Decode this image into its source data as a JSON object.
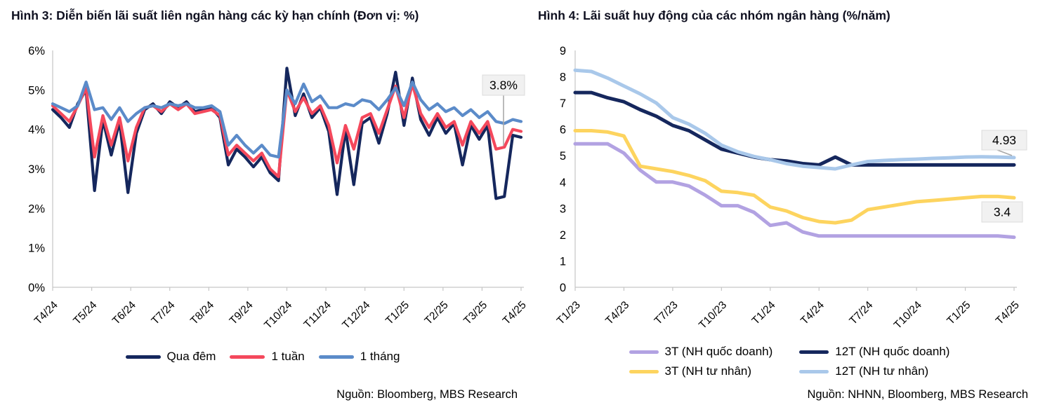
{
  "chart_data": [
    {
      "type": "line",
      "title": "Hình 3: Diễn biến lãi suất liên ngân hàng các kỳ hạn chính (Đơn vị: %)",
      "source": "Nguồn: Bloomberg, MBS Research",
      "ylim": [
        0,
        6
      ],
      "ytick_step": 1,
      "ytick_suffix": "%",
      "grid": false,
      "legend_position": "bottom",
      "x_tick_labels": [
        "T4/24",
        "T5/24",
        "T6/24",
        "T7/24",
        "T8/24",
        "T9/24",
        "T10/24",
        "T11/24",
        "T12/24",
        "T1/25",
        "T2/25",
        "T3/25",
        "T4/25"
      ],
      "series": [
        {
          "name": "Qua đêm",
          "color": "#15275d",
          "values": [
            4.5,
            4.3,
            4.05,
            4.65,
            5.0,
            2.45,
            4.25,
            3.35,
            4.2,
            2.4,
            3.9,
            4.5,
            4.65,
            4.4,
            4.7,
            4.55,
            4.7,
            4.45,
            4.5,
            4.55,
            4.3,
            3.1,
            3.5,
            3.3,
            3.05,
            3.3,
            2.9,
            2.7,
            5.55,
            4.35,
            4.9,
            4.3,
            4.55,
            3.95,
            2.35,
            4.0,
            2.6,
            4.15,
            4.3,
            3.65,
            4.4,
            5.45,
            4.1,
            5.3,
            4.25,
            3.85,
            4.3,
            3.9,
            4.15,
            3.1,
            4.1,
            3.75,
            4.1,
            2.25,
            2.3,
            3.85,
            3.8
          ]
        },
        {
          "name": "1 tuần",
          "color": "#f4485c",
          "values": [
            4.6,
            4.4,
            4.2,
            4.6,
            5.05,
            3.3,
            4.35,
            3.6,
            4.3,
            3.2,
            4.05,
            4.55,
            4.6,
            4.45,
            4.65,
            4.5,
            4.65,
            4.4,
            4.45,
            4.5,
            4.35,
            3.35,
            3.6,
            3.4,
            3.2,
            3.4,
            3.0,
            2.8,
            5.0,
            4.45,
            4.8,
            4.4,
            4.6,
            4.1,
            3.15,
            4.1,
            3.5,
            4.3,
            4.4,
            3.9,
            4.5,
            5.1,
            4.3,
            5.15,
            4.4,
            4.05,
            4.4,
            4.05,
            4.2,
            3.6,
            4.2,
            3.9,
            4.2,
            3.5,
            3.55,
            4.0,
            3.95
          ]
        },
        {
          "name": "1 tháng",
          "color": "#5b8bc9",
          "values": [
            4.65,
            4.55,
            4.45,
            4.6,
            5.2,
            4.5,
            4.55,
            4.25,
            4.55,
            4.2,
            4.4,
            4.55,
            4.6,
            4.55,
            4.65,
            4.6,
            4.65,
            4.55,
            4.55,
            4.6,
            4.45,
            3.6,
            3.85,
            3.6,
            3.4,
            3.6,
            3.35,
            3.3,
            5.0,
            4.65,
            5.15,
            4.7,
            4.85,
            4.55,
            4.55,
            4.65,
            4.6,
            4.75,
            4.7,
            4.5,
            4.75,
            5.05,
            4.6,
            5.2,
            4.75,
            4.5,
            4.65,
            4.45,
            4.55,
            4.35,
            4.5,
            4.3,
            4.45,
            4.2,
            4.15,
            4.25,
            4.2
          ]
        }
      ],
      "legend_order": [
        0,
        1,
        2
      ],
      "end_labels": [
        {
          "text": "3.8%",
          "series": "Qua đêm"
        }
      ]
    },
    {
      "type": "line",
      "title": "Hình 4: Lãi suất huy động của các nhóm ngân hàng (%/năm)",
      "source": "Nguồn: NHNN, Bloomberg, MBS Research",
      "ylim": [
        0,
        9
      ],
      "ytick_step": 1,
      "ytick_suffix": "",
      "grid": false,
      "legend_position": "bottom",
      "x_tick_labels": [
        "T1/23",
        "T4/23",
        "T7/23",
        "T10/23",
        "T1/24",
        "T4/24",
        "T7/24",
        "T10/24",
        "T1/25",
        "T4/25"
      ],
      "series": [
        {
          "name": "3T (NH quốc doanh)",
          "color": "#b2a2e2",
          "values": [
            5.45,
            5.45,
            5.45,
            5.1,
            4.45,
            4.0,
            4.0,
            3.85,
            3.5,
            3.1,
            3.1,
            2.85,
            2.35,
            2.45,
            2.1,
            1.95,
            1.95,
            1.95,
            1.95,
            1.95,
            1.95,
            1.95,
            1.95,
            1.95,
            1.95,
            1.95,
            1.95,
            1.9
          ]
        },
        {
          "name": "3T (NH tư nhân)",
          "color": "#fdd45f",
          "values": [
            5.95,
            5.95,
            5.9,
            5.75,
            4.6,
            4.5,
            4.4,
            4.25,
            4.05,
            3.65,
            3.6,
            3.5,
            3.05,
            2.9,
            2.65,
            2.5,
            2.45,
            2.55,
            2.95,
            3.05,
            3.15,
            3.25,
            3.3,
            3.35,
            3.4,
            3.45,
            3.45,
            3.4
          ]
        },
        {
          "name": "12T (NH quốc doanh)",
          "color": "#15275d",
          "values": [
            7.4,
            7.4,
            7.2,
            7.05,
            6.75,
            6.5,
            6.15,
            5.95,
            5.6,
            5.25,
            5.1,
            4.95,
            4.85,
            4.8,
            4.7,
            4.65,
            4.95,
            4.65,
            4.65,
            4.65,
            4.65,
            4.65,
            4.65,
            4.65,
            4.65,
            4.65,
            4.65,
            4.65
          ]
        },
        {
          "name": "12T (NH tư nhân)",
          "color": "#a9c8ea",
          "values": [
            8.25,
            8.2,
            7.95,
            7.65,
            7.35,
            7.0,
            6.45,
            6.2,
            5.85,
            5.4,
            5.15,
            4.97,
            4.85,
            4.7,
            4.6,
            4.55,
            4.5,
            4.65,
            4.78,
            4.82,
            4.85,
            4.87,
            4.9,
            4.92,
            4.95,
            4.96,
            4.95,
            4.93
          ]
        }
      ],
      "legend_order": [
        0,
        2,
        1,
        3
      ],
      "end_labels": [
        {
          "text": "4.93",
          "series": "12T (NH tư nhân)"
        },
        {
          "text": "3.4",
          "series": "3T (NH tư nhân)"
        }
      ]
    }
  ],
  "style_colors": {
    "axis": "#c6c6c6",
    "leader": "#a8a8a8",
    "label_box_bg": "#f1f1f1",
    "label_box_border": "#dcdcdc"
  }
}
